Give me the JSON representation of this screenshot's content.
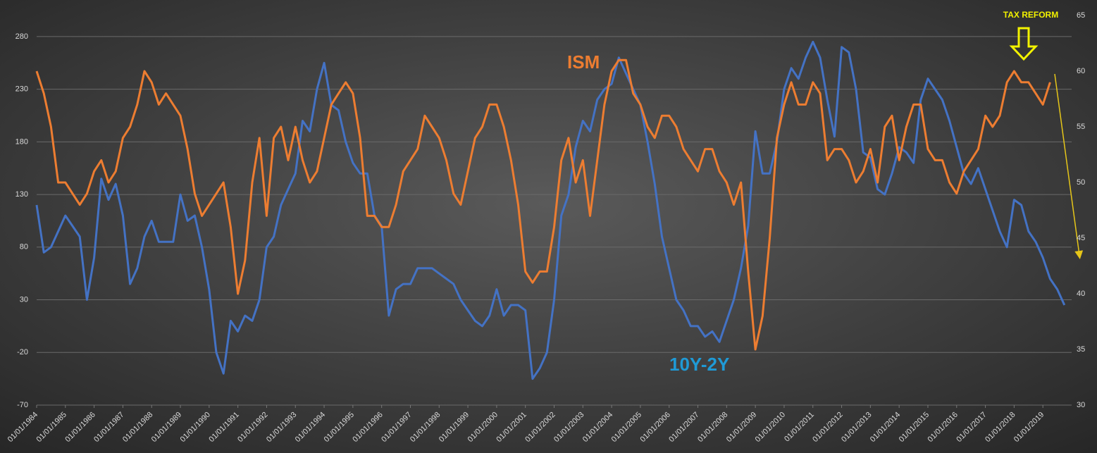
{
  "chart_data": {
    "type": "line",
    "x": [
      1984,
      1984.25,
      1984.5,
      1984.75,
      1985,
      1985.25,
      1985.5,
      1985.75,
      1986,
      1986.25,
      1986.5,
      1986.75,
      1987,
      1987.25,
      1987.5,
      1987.75,
      1988,
      1988.25,
      1988.5,
      1988.75,
      1989,
      1989.25,
      1989.5,
      1989.75,
      1990,
      1990.25,
      1990.5,
      1990.75,
      1991,
      1991.25,
      1991.5,
      1991.75,
      1992,
      1992.25,
      1992.5,
      1992.75,
      1993,
      1993.25,
      1993.5,
      1993.75,
      1994,
      1994.25,
      1994.5,
      1994.75,
      1995,
      1995.25,
      1995.5,
      1995.75,
      1996,
      1996.25,
      1996.5,
      1996.75,
      1997,
      1997.25,
      1997.5,
      1997.75,
      1998,
      1998.25,
      1998.5,
      1998.75,
      1999,
      1999.25,
      1999.5,
      1999.75,
      2000,
      2000.25,
      2000.5,
      2000.75,
      2001,
      2001.25,
      2001.5,
      2001.75,
      2002,
      2002.25,
      2002.5,
      2002.75,
      2003,
      2003.25,
      2003.5,
      2003.75,
      2004,
      2004.25,
      2004.5,
      2004.75,
      2005,
      2005.25,
      2005.5,
      2005.75,
      2006,
      2006.25,
      2006.5,
      2006.75,
      2007,
      2007.25,
      2007.5,
      2007.75,
      2008,
      2008.25,
      2008.5,
      2008.75,
      2009,
      2009.25,
      2009.5,
      2009.75,
      2010,
      2010.25,
      2010.5,
      2010.75,
      2011,
      2011.25,
      2011.5,
      2011.75,
      2012,
      2012.25,
      2012.5,
      2012.75,
      2013,
      2013.25,
      2013.5,
      2013.75,
      2014,
      2014.25,
      2014.5,
      2014.75,
      2015,
      2015.25,
      2015.5,
      2015.75,
      2016,
      2016.25,
      2016.5,
      2016.75,
      2017,
      2017.25,
      2017.5,
      2017.75,
      2018,
      2018.25,
      2018.5,
      2018.75,
      2019,
      2019.25,
      2019.5,
      2019.75
    ],
    "series": [
      {
        "name": "10Y-2Y",
        "color": "#4472c4",
        "axis": "y",
        "values": [
          120,
          75,
          80,
          95,
          110,
          100,
          90,
          30,
          70,
          145,
          125,
          140,
          110,
          45,
          60,
          90,
          105,
          85,
          85,
          85,
          130,
          105,
          110,
          80,
          40,
          -20,
          -40,
          10,
          0,
          15,
          10,
          30,
          80,
          90,
          120,
          135,
          150,
          200,
          190,
          230,
          255,
          215,
          210,
          180,
          160,
          150,
          150,
          110,
          100,
          15,
          40,
          45,
          45,
          60,
          60,
          60,
          55,
          50,
          45,
          30,
          20,
          10,
          5,
          15,
          40,
          15,
          25,
          25,
          20,
          -45,
          -35,
          -20,
          30,
          110,
          130,
          175,
          200,
          190,
          220,
          230,
          235,
          260,
          245,
          230,
          215,
          180,
          140,
          90,
          60,
          30,
          20,
          5,
          5,
          -5,
          0,
          -10,
          10,
          30,
          60,
          100,
          190,
          150,
          150,
          180,
          230,
          250,
          240,
          260,
          275,
          260,
          220,
          185,
          270,
          265,
          230,
          170,
          165,
          135,
          130,
          150,
          175,
          170,
          160,
          220,
          240,
          230,
          220,
          200,
          175,
          150,
          140,
          155,
          135,
          115,
          95,
          80,
          125,
          120,
          95,
          85,
          70,
          50,
          40,
          25
        ]
      },
      {
        "name": "ISM",
        "color": "#ed7d31",
        "axis": "y2",
        "values": [
          60,
          58,
          55,
          50,
          50,
          49,
          48,
          49,
          51,
          52,
          50,
          51,
          54,
          55,
          57,
          60,
          59,
          57,
          58,
          57,
          56,
          53,
          49,
          47,
          48,
          49,
          50,
          46,
          40,
          43,
          50,
          54,
          47,
          54,
          55,
          52,
          55,
          52,
          50,
          51,
          54,
          57,
          58,
          59,
          58,
          54,
          47,
          47,
          46,
          46,
          48,
          51,
          52,
          53,
          56,
          55,
          54,
          52,
          49,
          48,
          51,
          54,
          55,
          57,
          57,
          55,
          52,
          48,
          42,
          41,
          42,
          42,
          46,
          52,
          54,
          50,
          52,
          47,
          52,
          57,
          60,
          61,
          61,
          58,
          57,
          55,
          54,
          56,
          56,
          55,
          53,
          52,
          51,
          53,
          53,
          51,
          50,
          48,
          50,
          42,
          35,
          38,
          45,
          54,
          57,
          59,
          57,
          57,
          59,
          58,
          52,
          53,
          53,
          52,
          50,
          51,
          53,
          50,
          55,
          56,
          52,
          55,
          57,
          57,
          53,
          52,
          52,
          50,
          49,
          51,
          52,
          53,
          56,
          55,
          56,
          59,
          60,
          59,
          59,
          58,
          57,
          59,
          null,
          null
        ]
      }
    ],
    "xlim": [
      1984,
      2020
    ],
    "xticks": [
      {
        "value": 1984,
        "label": "01/01/1984"
      },
      {
        "value": 1985,
        "label": "01/01/1985"
      },
      {
        "value": 1986,
        "label": "01/01/1986"
      },
      {
        "value": 1987,
        "label": "01/01/1987"
      },
      {
        "value": 1988,
        "label": "01/01/1988"
      },
      {
        "value": 1989,
        "label": "01/01/1989"
      },
      {
        "value": 1990,
        "label": "01/01/1990"
      },
      {
        "value": 1991,
        "label": "01/01/1991"
      },
      {
        "value": 1992,
        "label": "01/01/1992"
      },
      {
        "value": 1993,
        "label": "01/01/1993"
      },
      {
        "value": 1994,
        "label": "01/01/1994"
      },
      {
        "value": 1995,
        "label": "01/01/1995"
      },
      {
        "value": 1996,
        "label": "01/01/1996"
      },
      {
        "value": 1997,
        "label": "01/01/1997"
      },
      {
        "value": 1998,
        "label": "01/01/1998"
      },
      {
        "value": 1999,
        "label": "01/01/1999"
      },
      {
        "value": 2000,
        "label": "01/01/2000"
      },
      {
        "value": 2001,
        "label": "01/01/2001"
      },
      {
        "value": 2002,
        "label": "01/01/2002"
      },
      {
        "value": 2003,
        "label": "01/01/2003"
      },
      {
        "value": 2004,
        "label": "01/01/2004"
      },
      {
        "value": 2005,
        "label": "01/01/2005"
      },
      {
        "value": 2006,
        "label": "01/01/2006"
      },
      {
        "value": 2007,
        "label": "01/01/2007"
      },
      {
        "value": 2008,
        "label": "01/01/2008"
      },
      {
        "value": 2009,
        "label": "01/01/2009"
      },
      {
        "value": 2010,
        "label": "01/01/2010"
      },
      {
        "value": 2011,
        "label": "01/01/2011"
      },
      {
        "value": 2012,
        "label": "01/01/2012"
      },
      {
        "value": 2013,
        "label": "01/01/2013"
      },
      {
        "value": 2014,
        "label": "01/01/2014"
      },
      {
        "value": 2015,
        "label": "01/01/2015"
      },
      {
        "value": 2016,
        "label": "01/01/2016"
      },
      {
        "value": 2017,
        "label": "01/01/2017"
      },
      {
        "value": 2018,
        "label": "01/01/2018"
      },
      {
        "value": 2019,
        "label": "01/01/2019"
      }
    ],
    "ylim": [
      -70,
      300
    ],
    "yticks": [
      -70,
      -20,
      30,
      80,
      130,
      180,
      230,
      280
    ],
    "y2lim": [
      30,
      65
    ],
    "y2ticks": [
      30,
      35,
      40,
      45,
      50,
      55,
      60,
      65
    ],
    "grid": true,
    "annotations": [
      "TAX REFORM"
    ]
  }
}
